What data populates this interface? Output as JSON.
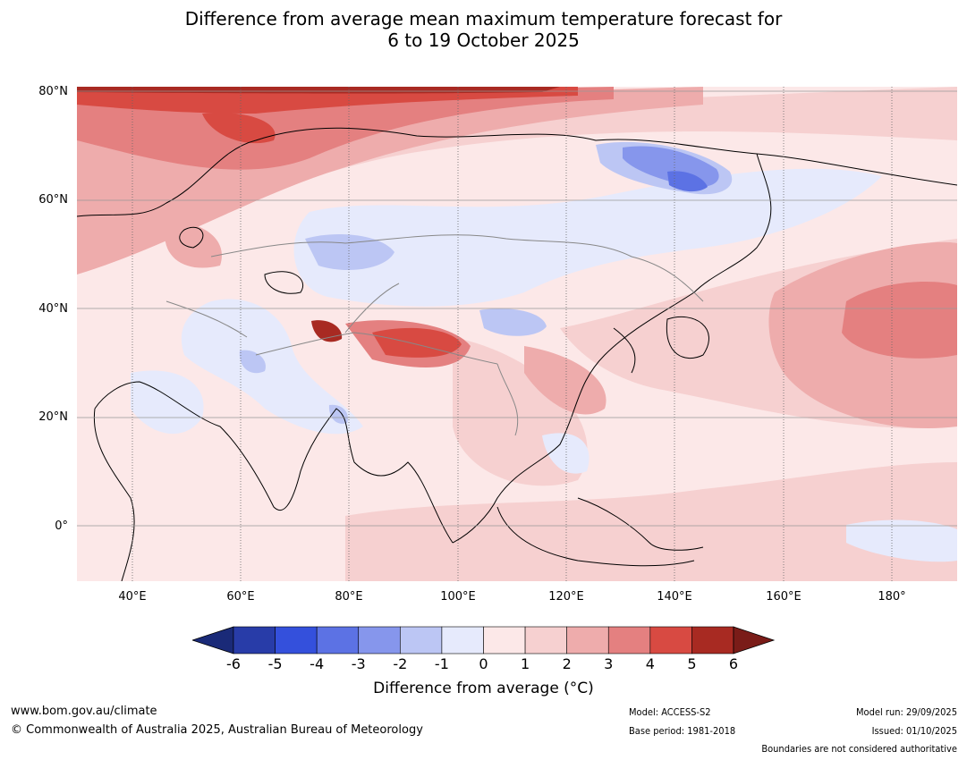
{
  "title": {
    "line1": "Difference from average mean maximum temperature forecast for",
    "line2": "6 to 19 October 2025"
  },
  "map": {
    "region": "Asia",
    "lat_labels": [
      "80°N",
      "60°N",
      "40°N",
      "20°N",
      "0°"
    ],
    "lon_labels": [
      "40°E",
      "60°E",
      "80°E",
      "100°E",
      "120°E",
      "140°E",
      "160°E",
      "180°"
    ]
  },
  "colorbar": {
    "title": "Difference from average (°C)",
    "ticks": [
      "-6",
      "-5",
      "-4",
      "-3",
      "-2",
      "-1",
      "0",
      "1",
      "2",
      "3",
      "4",
      "5",
      "6"
    ],
    "colors": [
      "#283ca8",
      "#3450dc",
      "#5c72e4",
      "#8696ec",
      "#bcc6f4",
      "#e6eafc",
      "#fce8e8",
      "#f6d0d0",
      "#eeacac",
      "#e48080",
      "#d84a42",
      "#a82a22"
    ],
    "under_color": "#1a2a78",
    "over_color": "#7a1c18"
  },
  "footer": {
    "website": "www.bom.gov.au/climate",
    "copyright": "© Commonwealth of Australia 2025, Australian Bureau of Meteorology",
    "model": "Model: ACCESS-S2",
    "base_period": "Base period: 1981-2018",
    "model_run": "Model run: 29/09/2025",
    "issued": "Issued: 01/10/2025",
    "disclaimer": "Boundaries are not considered authoritative"
  }
}
